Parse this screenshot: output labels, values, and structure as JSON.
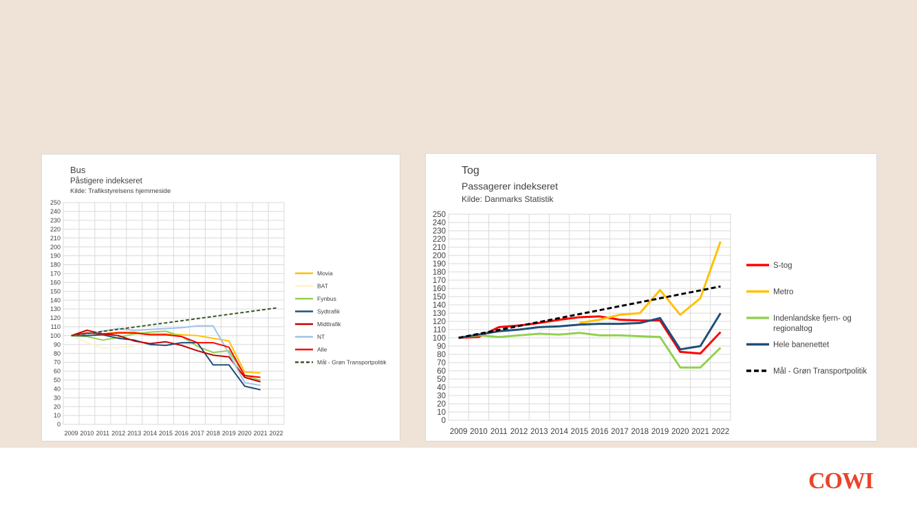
{
  "logo": "COWI",
  "colors": {
    "background": "#efe2d7",
    "accent": "#e8452c"
  },
  "chart_data": [
    {
      "type": "line",
      "title": "Bus",
      "subtitle": "Påstigere indekseret",
      "source": "Kilde: Trafikstyrelsens hjemmeside",
      "x": [
        2009,
        2010,
        2011,
        2012,
        2013,
        2014,
        2015,
        2016,
        2017,
        2018,
        2019,
        2020,
        2021,
        2022
      ],
      "ylim": [
        0,
        250
      ],
      "ytick_step": 10,
      "grid": true,
      "legend": "right",
      "series": [
        {
          "name": "Movia",
          "color": "#ffc000",
          "dash": false,
          "values": [
            100,
            103,
            102,
            104,
            104,
            102,
            102,
            101,
            100,
            97,
            94,
            59,
            58,
            null
          ]
        },
        {
          "name": "BAT",
          "color": "#fff2cc",
          "dash": false,
          "values": [
            100,
            92,
            86,
            87,
            88,
            null,
            null,
            null,
            null,
            null,
            null,
            null,
            null,
            null
          ]
        },
        {
          "name": "Fynbus",
          "color": "#92d050",
          "dash": false,
          "values": [
            100,
            99,
            95,
            98,
            102,
            104,
            105,
            99,
            88,
            81,
            83,
            55,
            50,
            null
          ]
        },
        {
          "name": "Sydtrafik",
          "color": "#1f4e79",
          "dash": false,
          "values": [
            100,
            100,
            101,
            97,
            95,
            90,
            89,
            92,
            92,
            67,
            67,
            43,
            39,
            null
          ]
        },
        {
          "name": "Midttrafik",
          "color": "#c00000",
          "dash": false,
          "values": [
            100,
            106,
            102,
            100,
            94,
            91,
            93,
            89,
            83,
            78,
            76,
            53,
            48,
            null
          ]
        },
        {
          "name": "NT",
          "color": "#9dc3e6",
          "dash": false,
          "values": [
            100,
            102,
            105,
            108,
            106,
            107,
            108,
            109,
            111,
            111,
            80,
            47,
            44,
            null
          ]
        },
        {
          "name": "Alle",
          "color": "#ff0000",
          "dash": false,
          "values": [
            100,
            103,
            102,
            103,
            103,
            101,
            101,
            99,
            92,
            92,
            87,
            55,
            53,
            null
          ]
        },
        {
          "name": "Mål - Grøn Transportpolitik",
          "color": "#375623",
          "dash": true,
          "values": [
            100,
            102.4,
            104.8,
            107.2,
            109.6,
            112,
            114.4,
            116.8,
            119.2,
            121.6,
            124,
            126.4,
            128.8,
            131.2
          ]
        }
      ]
    },
    {
      "type": "line",
      "title": "Tog",
      "subtitle": "Passagerer indekseret",
      "source": "Kilde: Danmarks Statistik",
      "x": [
        2009,
        2010,
        2011,
        2012,
        2013,
        2014,
        2015,
        2016,
        2017,
        2018,
        2019,
        2020,
        2021,
        2022
      ],
      "ylim": [
        0,
        250
      ],
      "ytick_step": 10,
      "grid": true,
      "legend": "right",
      "series": [
        {
          "name": "S-tog",
          "color": "#ff0000",
          "dash": false,
          "values": [
            100,
            101,
            113,
            115,
            118,
            122,
            125,
            126,
            122,
            121,
            121,
            83,
            81,
            107
          ]
        },
        {
          "name": "Metro",
          "color": "#ffc000",
          "dash": false,
          "values": [
            null,
            null,
            null,
            null,
            null,
            null,
            118,
            122,
            128,
            130,
            158,
            128,
            148,
            217
          ]
        },
        {
          "name": "Indenlandske fjern- og regionaltog",
          "color": "#92d050",
          "dash": false,
          "values": [
            100,
            103,
            101,
            103,
            105,
            104,
            106,
            103,
            103,
            102,
            101,
            64,
            64,
            88
          ]
        },
        {
          "name": "Hele banenettet",
          "color": "#1f4e79",
          "dash": false,
          "values": [
            100,
            104,
            108,
            110,
            113,
            114,
            116,
            117,
            117,
            118,
            124,
            86,
            90,
            130
          ]
        },
        {
          "name": "Mål - Grøn Transportpolitik",
          "color": "#000000",
          "dash": true,
          "values": [
            100,
            104.8,
            109.6,
            114.4,
            119.2,
            124,
            128.8,
            133.6,
            138.4,
            143.2,
            148,
            152.8,
            157.6,
            162.4
          ]
        }
      ]
    }
  ]
}
